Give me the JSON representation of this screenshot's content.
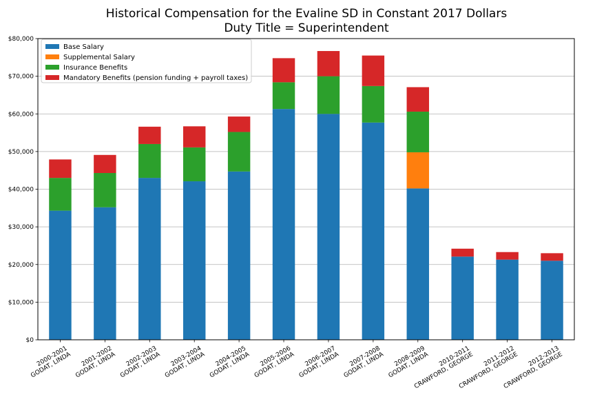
{
  "chart_data": {
    "type": "bar",
    "stacked": true,
    "title": "Historical Compensation for the Evaline SD in Constant 2017 Dollars",
    "subtitle": "Duty Title = Superintendent",
    "xlabel": "",
    "ylabel": "",
    "ylim": [
      0,
      80000
    ],
    "yticks": [
      0,
      10000,
      20000,
      30000,
      40000,
      50000,
      60000,
      70000,
      80000
    ],
    "ytick_labels": [
      "$0",
      "$10,000",
      "$20,000",
      "$30,000",
      "$40,000",
      "$50,000",
      "$60,000",
      "$70,000",
      "$80,000"
    ],
    "grid": "horizontal",
    "legend_position": "top-left",
    "categories": [
      [
        "2000-2001",
        "GODAT, LINDA"
      ],
      [
        "2001-2002",
        "GODAT, LINDA"
      ],
      [
        "2002-2003",
        "GODAT, LINDA"
      ],
      [
        "2003-2004",
        "GODAT, LINDA"
      ],
      [
        "2004-2005",
        "GODAT, LINDA"
      ],
      [
        "2005-2006",
        "GODAT, LINDA"
      ],
      [
        "2006-2007",
        "GODAT, LINDA"
      ],
      [
        "2007-2008",
        "GODAT, LINDA"
      ],
      [
        "2008-2009",
        "GODAT, LINDA"
      ],
      [
        "2010-2011",
        "CRAWFORD, GEORGE"
      ],
      [
        "2011-2012",
        "CRAWFORD, GEORGE"
      ],
      [
        "2012-2013",
        "CRAWFORD, GEORGE"
      ]
    ],
    "series": [
      {
        "name": "Base Salary",
        "color": "#1f77b4",
        "values": [
          34300,
          35200,
          43000,
          42100,
          44700,
          61300,
          60000,
          57700,
          40200,
          22100,
          21300,
          21000
        ]
      },
      {
        "name": "Supplemental Salary",
        "color": "#ff7f0e",
        "values": [
          0,
          0,
          0,
          0,
          0,
          0,
          0,
          0,
          9600,
          0,
          0,
          0
        ]
      },
      {
        "name": "Insurance Benefits",
        "color": "#2ca02c",
        "values": [
          8700,
          9100,
          9000,
          9000,
          10500,
          7100,
          10000,
          9700,
          10800,
          0,
          0,
          0
        ]
      },
      {
        "name": "Mandatory Benefits (pension funding + payroll taxes)",
        "color": "#d62728",
        "values": [
          4900,
          4800,
          4600,
          5600,
          4100,
          6400,
          6700,
          8100,
          6500,
          2100,
          2000,
          2000
        ]
      }
    ]
  }
}
